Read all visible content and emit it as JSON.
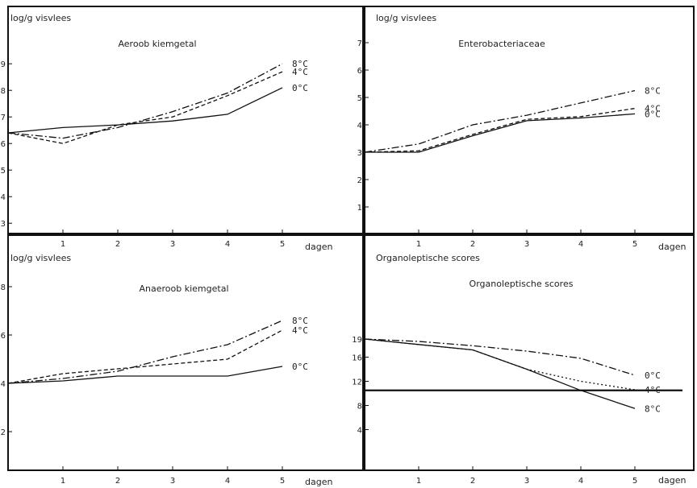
{
  "chart_data": [
    {
      "type": "line",
      "ylabel": "log/g visvlees",
      "title": "Aeroob kiemgetal",
      "xlabel": "dagen",
      "x": [
        0,
        1,
        2,
        3,
        4,
        5
      ],
      "xticks": [
        "1",
        "2",
        "3",
        "4",
        "5"
      ],
      "yticks": [
        "3",
        "4",
        "5",
        "6",
        "7",
        "8",
        "9"
      ],
      "ylim": [
        2,
        9.5
      ],
      "series": [
        {
          "name": "8°C",
          "style": "dashdot",
          "values": [
            6.4,
            6.2,
            6.6,
            7.2,
            7.9,
            9.0
          ]
        },
        {
          "name": "4°C",
          "style": "dashed",
          "values": [
            6.4,
            6.0,
            6.7,
            7.0,
            7.8,
            8.7
          ]
        },
        {
          "name": "0°C",
          "style": "solid",
          "values": [
            6.4,
            6.6,
            6.7,
            6.85,
            7.1,
            8.1
          ]
        }
      ]
    },
    {
      "type": "line",
      "ylabel": "log/g visvlees",
      "title": "Enterobacteriaceae",
      "xlabel": "dagen",
      "x": [
        0,
        1,
        2,
        3,
        4,
        5
      ],
      "xticks": [
        "1",
        "2",
        "3",
        "4",
        "5"
      ],
      "yticks": [
        "1",
        "2",
        "3",
        "4",
        "5",
        "6",
        "7"
      ],
      "ylim": [
        0,
        8
      ],
      "series": [
        {
          "name": "8°C",
          "style": "dashdot",
          "values": [
            3.0,
            3.3,
            4.0,
            4.35,
            4.8,
            5.25
          ]
        },
        {
          "name": "4°C",
          "style": "dashed",
          "values": [
            3.0,
            3.05,
            3.65,
            4.2,
            4.3,
            4.6
          ]
        },
        {
          "name": "0°C",
          "style": "solid",
          "values": [
            3.0,
            3.0,
            3.6,
            4.15,
            4.25,
            4.4
          ]
        }
      ]
    },
    {
      "type": "line",
      "ylabel": "log/g visvlees",
      "title": "Anaeroob kiemgetal",
      "xlabel": "dagen",
      "x": [
        0,
        1,
        2,
        3,
        4,
        5
      ],
      "xticks": [
        "1",
        "2",
        "3",
        "4",
        "5"
      ],
      "yticks": [
        "2",
        "4",
        "6",
        "8"
      ],
      "ylim": [
        0,
        11
      ],
      "series": [
        {
          "name": "8°C",
          "style": "dashdot",
          "values": [
            4.0,
            4.2,
            4.5,
            5.1,
            5.6,
            6.6
          ]
        },
        {
          "name": "4°C",
          "style": "dashed",
          "values": [
            4.0,
            4.4,
            4.6,
            4.8,
            5.0,
            6.2
          ]
        },
        {
          "name": "0°C",
          "style": "solid",
          "values": [
            4.0,
            4.1,
            4.3,
            4.3,
            4.3,
            4.7
          ]
        }
      ]
    },
    {
      "type": "line",
      "ylabel": "Organoleptische scores",
      "title": "Organoleptische scores",
      "xlabel": "dagen",
      "x": [
        0,
        1,
        2,
        3,
        4,
        5
      ],
      "xticks": [
        "1",
        "2",
        "3",
        "4",
        "5"
      ],
      "yticks": [
        "4",
        "8",
        "12",
        "16",
        "19"
      ],
      "ylim": [
        0,
        26
      ],
      "reference_value": 10.5,
      "series": [
        {
          "name": "0°C",
          "style": "dashdot",
          "values": [
            19,
            18.6,
            17.9,
            17.0,
            15.8,
            13.0
          ]
        },
        {
          "name": "4°C",
          "style": "dotted",
          "values": [
            19,
            18.1,
            17.2,
            14.0,
            12.0,
            10.6
          ]
        },
        {
          "name": "8°C",
          "style": "solid",
          "values": [
            19,
            18.1,
            17.2,
            14.0,
            10.5,
            7.5
          ]
        }
      ]
    }
  ]
}
